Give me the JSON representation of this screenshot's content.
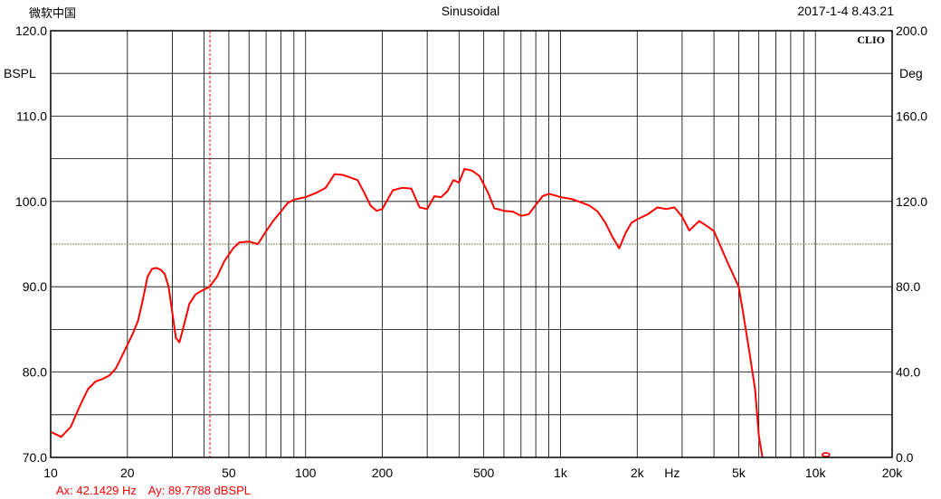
{
  "header": {
    "left": "微软中国",
    "center": "Sinusoidal",
    "right": "2017-1-4 8.43.21"
  },
  "cursor": {
    "ax": "Ax: 42.1429 Hz",
    "ay": "Ay: 89.7788 dBSPL",
    "x_value": 42.1429
  },
  "chart_data": {
    "type": "line",
    "title": "",
    "brand": "CLIO",
    "xlabel": "Hz",
    "ylabel": "BSPL",
    "y2label": "Deg",
    "xscale": "log",
    "xlim": [
      10,
      20000
    ],
    "ylim": [
      70,
      120
    ],
    "y2lim": [
      0,
      200
    ],
    "grid": true,
    "x_tick_labels": [
      {
        "value": 10,
        "label": "10"
      },
      {
        "value": 20,
        "label": "20"
      },
      {
        "value": 50,
        "label": "50"
      },
      {
        "value": 100,
        "label": "100"
      },
      {
        "value": 200,
        "label": "200"
      },
      {
        "value": 500,
        "label": "500"
      },
      {
        "value": 1000,
        "label": "1k"
      },
      {
        "value": 2000,
        "label": "2k"
      },
      {
        "value": 5000,
        "label": "5k"
      },
      {
        "value": 10000,
        "label": "10k"
      },
      {
        "value": 20000,
        "label": "20k"
      }
    ],
    "y_tick_labels": [
      {
        "value": 120,
        "label": "120.0"
      },
      {
        "value": 110,
        "label": "110.0"
      },
      {
        "value": 100,
        "label": "100.0"
      },
      {
        "value": 90,
        "label": "90.0"
      },
      {
        "value": 80,
        "label": "80.0"
      },
      {
        "value": 70,
        "label": "70.0"
      }
    ],
    "y2_tick_labels": [
      {
        "value": 200,
        "label": "200.0"
      },
      {
        "value": 160,
        "label": "160.0"
      },
      {
        "value": 120,
        "label": "120.0"
      },
      {
        "value": 80,
        "label": "80.0"
      },
      {
        "value": 40,
        "label": "40.0"
      },
      {
        "value": 0,
        "label": "0.0"
      }
    ],
    "reference_line_y": 95,
    "colors": {
      "curve": "#ff0000",
      "grid": "#000000",
      "reference": "#7a8a6a",
      "cursor": "#ff0000"
    },
    "series": [
      {
        "x": [
          10,
          11,
          12,
          13,
          14,
          15,
          16,
          17,
          18,
          19,
          20,
          21,
          22,
          23,
          24,
          25,
          26,
          27,
          28,
          29,
          30,
          31,
          32,
          33,
          35,
          37,
          39,
          42,
          45,
          48,
          52,
          55,
          60,
          65,
          70,
          75,
          80,
          85,
          90,
          100,
          110,
          120,
          130,
          140,
          150,
          160,
          170,
          180,
          190,
          200,
          220,
          240,
          260,
          280,
          300,
          320,
          340,
          360,
          380,
          400,
          420,
          450,
          480,
          500,
          520,
          550,
          600,
          650,
          700,
          750,
          800,
          850,
          900,
          950,
          1000,
          1100,
          1200,
          1300,
          1400,
          1500,
          1600,
          1700,
          1800,
          1900,
          2000,
          2200,
          2400,
          2600,
          2800,
          3000,
          3200,
          3500,
          3800,
          4000,
          4500,
          5000,
          5200,
          5500,
          5800,
          6000,
          6200
        ],
        "y": [
          73,
          72.4,
          73.6,
          76,
          78,
          78.9,
          79.2,
          79.6,
          80.4,
          81.8,
          83.2,
          84.5,
          86,
          88.5,
          91.2,
          92.1,
          92.2,
          92,
          91.5,
          90,
          87,
          84,
          83.5,
          85,
          88,
          89.1,
          89.5,
          90,
          91.2,
          93,
          94.5,
          95.2,
          95.3,
          95,
          96.5,
          97.8,
          98.8,
          99.8,
          100.2,
          100.5,
          101,
          101.6,
          103.2,
          103.1,
          102.8,
          102.5,
          101,
          99.5,
          98.9,
          99.1,
          101.3,
          101.6,
          101.5,
          99.3,
          99.1,
          100.6,
          100.5,
          101.2,
          102.5,
          102.2,
          103.8,
          103.6,
          103,
          102,
          101,
          99.2,
          98.9,
          98.8,
          98.3,
          98.5,
          99.6,
          100.6,
          100.9,
          100.7,
          100.5,
          100.3,
          99.9,
          99.5,
          98.8,
          97.5,
          95.8,
          94.5,
          96.3,
          97.5,
          97.9,
          98.5,
          99.3,
          99.1,
          99.3,
          98.2,
          96.6,
          97.7,
          97,
          96.5,
          93,
          90,
          87,
          82.5,
          78,
          72.5,
          70
        ]
      }
    ],
    "annotations": [
      {
        "x": 11000,
        "y": 70.2,
        "type": "marker"
      }
    ]
  }
}
